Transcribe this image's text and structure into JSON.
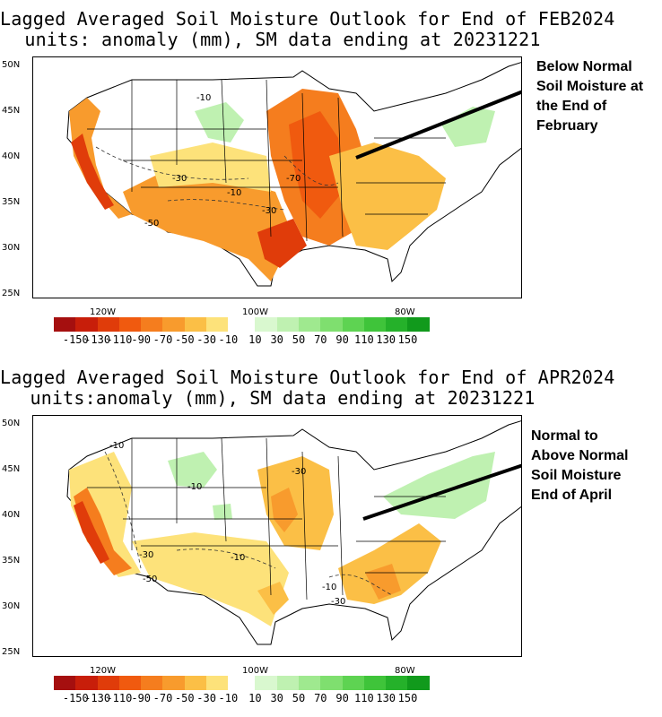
{
  "panels": [
    {
      "id": "feb",
      "title_line1": "Lagged Averaged Soil Moisture Outlook for End of FEB2024",
      "title_line2": "units: anomaly (mm), SM data ending at 20231221",
      "contour_labels": [
        "-10",
        "-30",
        "-10",
        "-30",
        "-50",
        "-70"
      ],
      "annotation": [
        "Below Normal",
        "Soil Moisture at",
        "the End of",
        "February"
      ]
    },
    {
      "id": "apr",
      "title_line1": "Lagged Averaged Soil Moisture Outlook for End of APR2024",
      "title_line2": "units:anomaly (mm), SM data ending at 20231221",
      "contour_labels": [
        "-10",
        "-10",
        "-30",
        "-30",
        "-10",
        "-50",
        "-10",
        "-30"
      ],
      "annotation": [
        "Normal to",
        "Above Normal",
        "Soil Moisture",
        "End of April"
      ]
    }
  ],
  "lat_labels": [
    "50N",
    "45N",
    "40N",
    "35N",
    "30N",
    "25N"
  ],
  "lon_labels": [
    "120W",
    "100W",
    "80W"
  ],
  "colorbar": {
    "labels": [
      "-150",
      "-130",
      "-110",
      "-90",
      "-70",
      "-50",
      "-30",
      "-10",
      "10",
      "30",
      "50",
      "70",
      "90",
      "110",
      "130",
      "150"
    ],
    "dry_colors": [
      "#a50f0f",
      "#c81e0a",
      "#e03c0a",
      "#f05a0f",
      "#f57d1e",
      "#f89b2d",
      "#fbbf46",
      "#fde27a"
    ],
    "wet_colors": [
      "#d9f8cf",
      "#bff1b1",
      "#9fe98f",
      "#7fdf6f",
      "#5ed352",
      "#3fc43a",
      "#25b12a",
      "#119a1c"
    ]
  }
}
